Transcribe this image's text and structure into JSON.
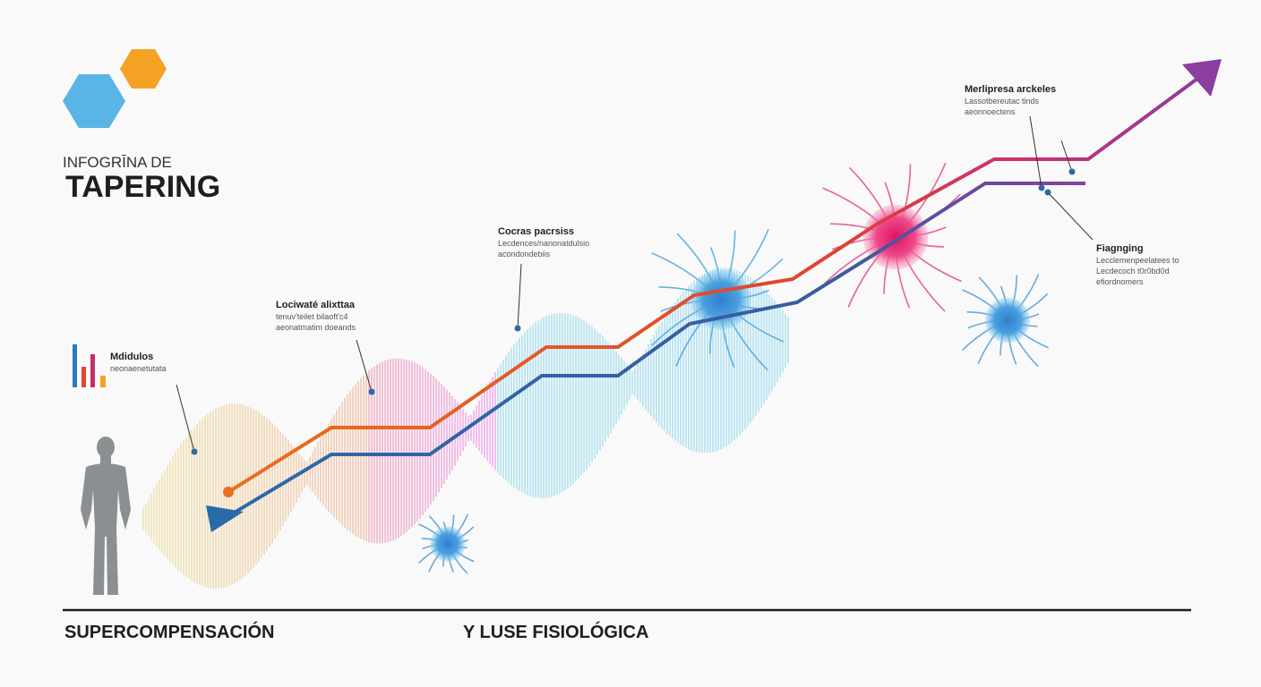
{
  "header": {
    "kicker": "INFOGRĪNA DE",
    "title": "TAPERING"
  },
  "annotations": [
    {
      "title": "Mdidulos",
      "lines": [
        "neonaenetutata"
      ]
    },
    {
      "title": "Lociwaté alixttaa",
      "lines": [
        "tenuv'teilet bilaoft'c4",
        "aeonatmatim doeands"
      ]
    },
    {
      "title": "Cocras pacrsiss",
      "lines": [
        "Lecdences/nanonatdulsio",
        "acondondebiis"
      ]
    },
    {
      "title": "Merlipresa arckeles",
      "lines": [
        "Lassotbereutac tinds",
        "aeonnoectens"
      ]
    },
    {
      "title": "Fiagnging",
      "lines": [
        "Lecclemenpeelatees to",
        "Lecdecoch t0r0bd0d",
        "efiordnomers"
      ]
    }
  ],
  "footer": {
    "left": "SUPERCOMPENSACIÓN",
    "right": "Y LUSE FISIOLÓGICA"
  }
}
